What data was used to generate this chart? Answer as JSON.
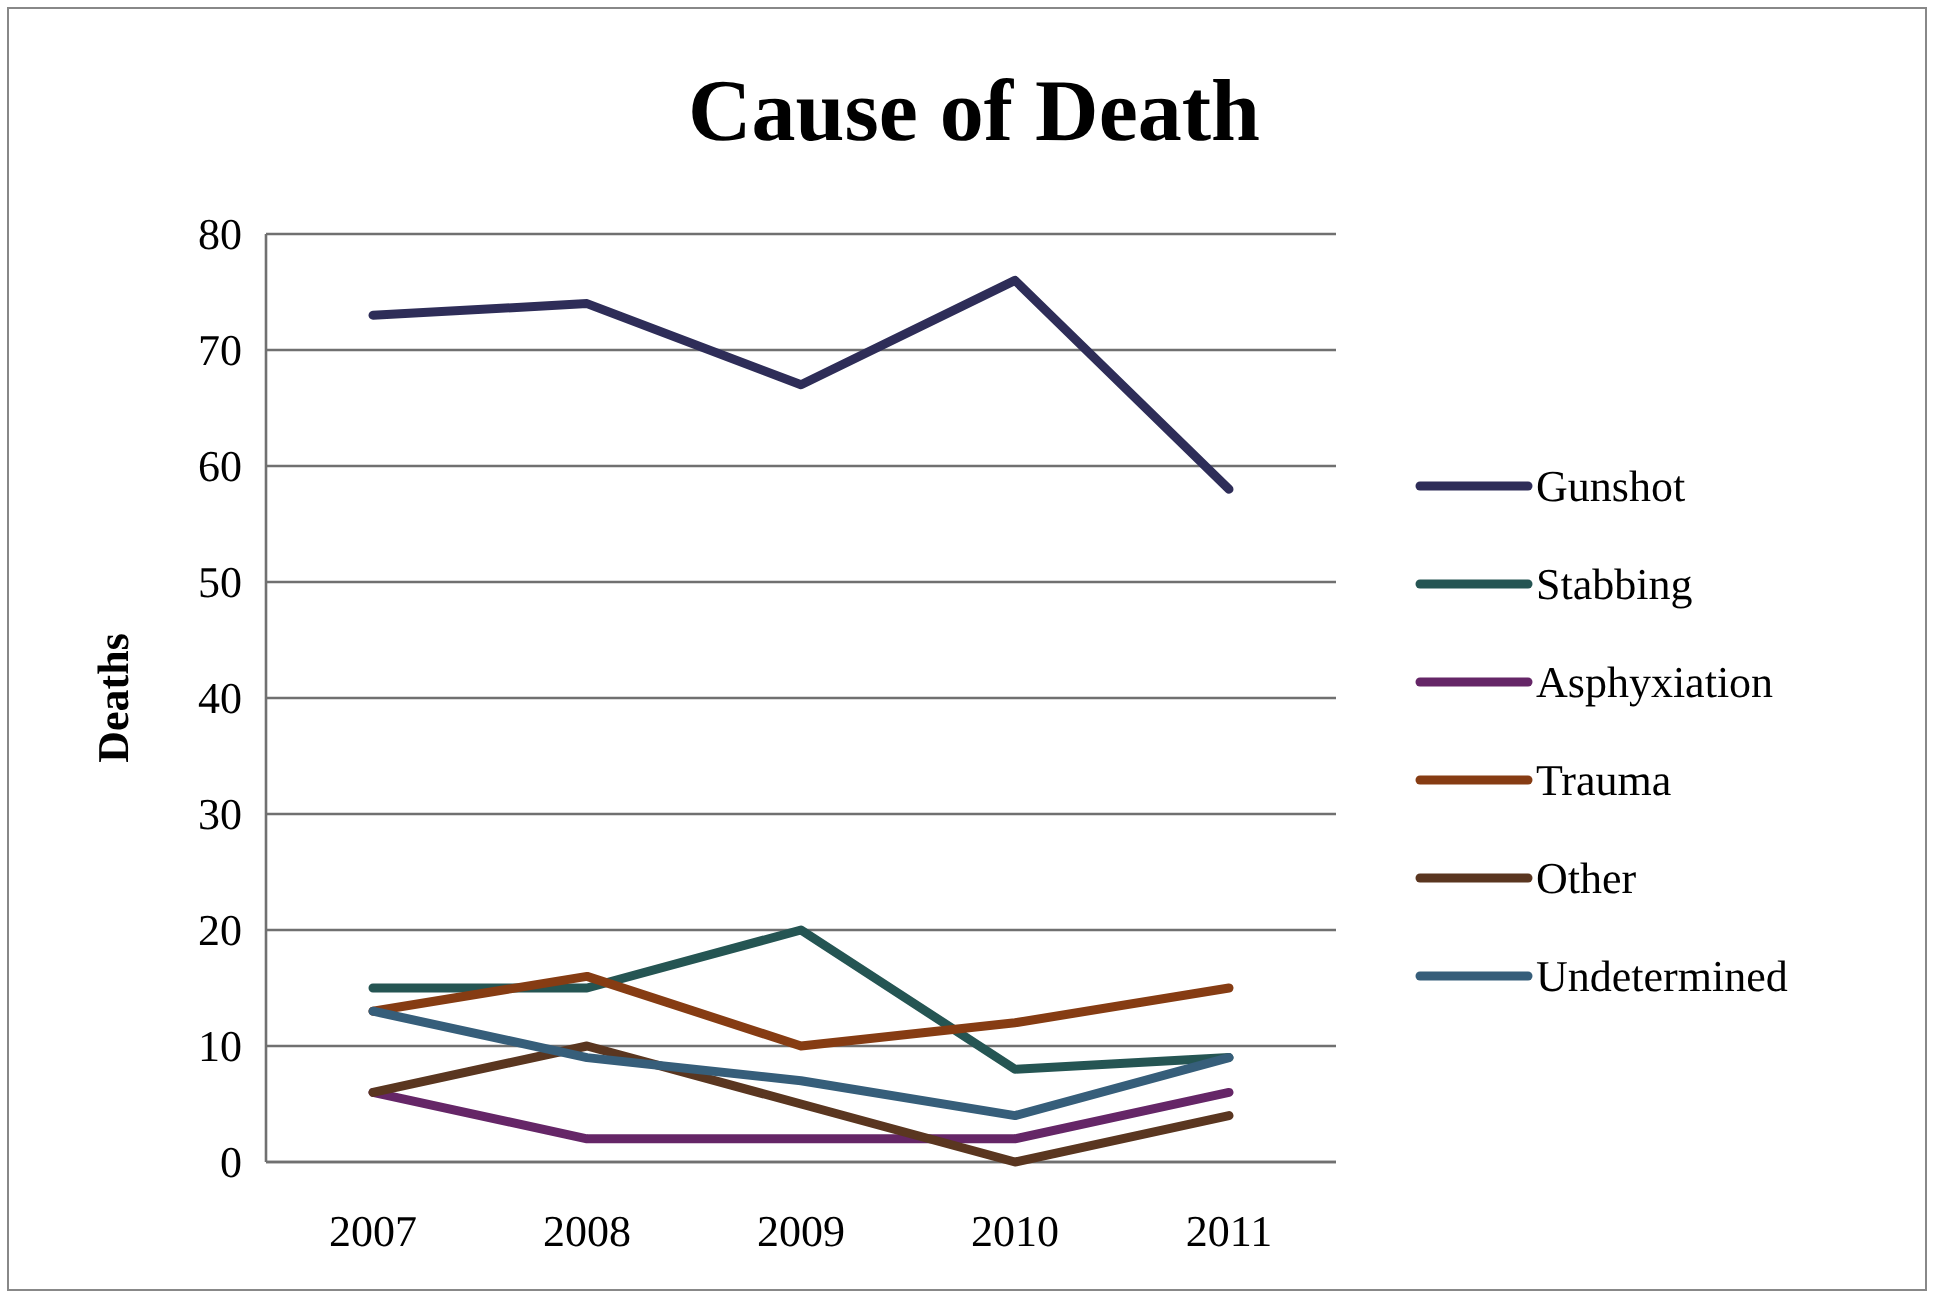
{
  "chart_data": {
    "type": "line",
    "title": "Cause of Death",
    "ylabel": "Deaths",
    "categories": [
      "2007",
      "2008",
      "2009",
      "2010",
      "2011"
    ],
    "series": [
      {
        "name": "Gunshot",
        "color": "#2e2d58",
        "values": [
          73,
          74,
          67,
          76,
          58
        ]
      },
      {
        "name": "Stabbing",
        "color": "#255553",
        "values": [
          15,
          15,
          20,
          8,
          9
        ]
      },
      {
        "name": "Asphyxiation",
        "color": "#652667",
        "values": [
          6,
          2,
          2,
          2,
          6
        ]
      },
      {
        "name": "Trauma",
        "color": "#863c13",
        "values": [
          13,
          16,
          10,
          12,
          15
        ]
      },
      {
        "name": "Other",
        "color": "#5a3620",
        "values": [
          6,
          10,
          5,
          0,
          4
        ]
      },
      {
        "name": "Undetermined",
        "color": "#365e7a",
        "values": [
          13,
          9,
          7,
          4,
          9
        ]
      }
    ],
    "ylim": [
      0,
      80
    ],
    "yticks": [
      0,
      10,
      20,
      30,
      40,
      50,
      60,
      70,
      80
    ],
    "grid": "y",
    "legend": "right",
    "marker": "none",
    "line_style": "solid"
  }
}
